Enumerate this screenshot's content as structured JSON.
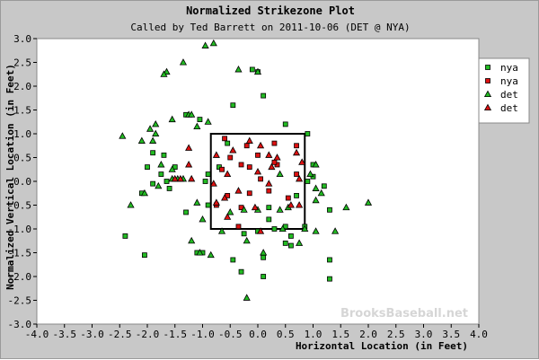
{
  "chart_data": {
    "type": "scatter",
    "title": "Normalized Strikezone Plot",
    "subtitle": "Called by Ted Barrett on 2011-10-06 (DET @ NYA)",
    "xlabel": "Horizontal Location (in Feet)",
    "ylabel": "Normalized Vertical Location (in Feet)",
    "xlim": [
      -4.0,
      4.0
    ],
    "ylim": [
      -3.0,
      3.0
    ],
    "x_ticks": [
      "-4.0",
      "-3.5",
      "-3.0",
      "-2.5",
      "-2.0",
      "-1.5",
      "-1.0",
      "-0.5",
      "0.0",
      "0.5",
      "1.0",
      "1.5",
      "2.0",
      "2.5",
      "3.0",
      "3.5",
      "4.0"
    ],
    "y_ticks": [
      "3.0",
      "2.5",
      "2.0",
      "1.5",
      "1.0",
      "0.5",
      "0.0",
      "-0.5",
      "-1.0",
      "-1.5",
      "-2.0",
      "-2.5",
      "-3.0"
    ],
    "strike_zone": {
      "x": [
        -0.85,
        0.85
      ],
      "y": [
        -1.0,
        1.0
      ]
    },
    "legend_position": "top-right",
    "watermark": "BrooksBaseball.net",
    "colors": {
      "ball": "#22bb22",
      "strike": "#dd1111",
      "plot_bg": "#ffffff",
      "outer_bg": "#c8c8c8"
    },
    "series": [
      {
        "name": "nya",
        "marker": "square",
        "color": "#22bb22",
        "points": [
          [
            0.5,
            1.2
          ],
          [
            0.9,
            1.0
          ],
          [
            -1.7,
            0.55
          ],
          [
            -1.6,
            -0.15
          ],
          [
            -2.1,
            -0.25
          ],
          [
            -1.5,
            0.3
          ],
          [
            -1.3,
            -0.65
          ],
          [
            -2.05,
            -1.55
          ],
          [
            -2.4,
            -1.15
          ],
          [
            -1.1,
            -1.5
          ],
          [
            -1.0,
            -1.5
          ],
          [
            -0.45,
            -1.65
          ],
          [
            -0.3,
            -1.9
          ],
          [
            0.1,
            -2.0
          ],
          [
            0.1,
            -1.6
          ],
          [
            0.6,
            -1.35
          ],
          [
            0.6,
            -1.15
          ],
          [
            0.5,
            -0.95
          ],
          [
            1.3,
            -1.65
          ],
          [
            1.3,
            -2.05
          ],
          [
            0.5,
            -1.3
          ],
          [
            0.2,
            -0.55
          ],
          [
            0.9,
            0.0
          ],
          [
            0.2,
            -0.8
          ],
          [
            -0.9,
            -0.5
          ],
          [
            -0.7,
            0.3
          ],
          [
            -1.3,
            1.4
          ],
          [
            -1.05,
            1.3
          ],
          [
            0.1,
            1.8
          ],
          [
            0.0,
            2.3
          ],
          [
            -0.1,
            2.35
          ],
          [
            -0.45,
            1.6
          ],
          [
            -0.55,
            0.8
          ],
          [
            -0.9,
            0.15
          ],
          [
            -0.95,
            0.0
          ],
          [
            -2.0,
            0.3
          ],
          [
            -1.9,
            -0.05
          ],
          [
            -1.75,
            0.15
          ],
          [
            -1.9,
            0.6
          ],
          [
            -1.65,
            0.0
          ],
          [
            1.0,
            0.1
          ],
          [
            1.0,
            0.35
          ],
          [
            1.2,
            -0.1
          ],
          [
            1.3,
            -0.6
          ],
          [
            0.85,
            -0.95
          ],
          [
            0.0,
            -1.05
          ],
          [
            0.3,
            -1.0
          ],
          [
            0.7,
            -0.3
          ],
          [
            -0.25,
            -1.1
          ]
        ]
      },
      {
        "name": "nya",
        "marker": "square",
        "color": "#dd1111",
        "points": [
          [
            -0.6,
            0.9
          ],
          [
            -0.5,
            0.5
          ],
          [
            -0.2,
            0.75
          ],
          [
            -0.15,
            0.3
          ],
          [
            0.0,
            0.55
          ],
          [
            0.3,
            0.8
          ],
          [
            0.7,
            0.75
          ],
          [
            0.35,
            0.35
          ],
          [
            0.7,
            0.15
          ],
          [
            0.05,
            0.05
          ],
          [
            -0.3,
            0.35
          ],
          [
            -0.65,
            0.25
          ],
          [
            -0.55,
            -0.3
          ],
          [
            -0.15,
            -0.25
          ],
          [
            0.2,
            -0.2
          ],
          [
            0.55,
            -0.35
          ],
          [
            -0.3,
            -0.55
          ],
          [
            -0.75,
            -0.5
          ],
          [
            -0.35,
            -0.95
          ],
          [
            0.3,
            0.4
          ]
        ]
      },
      {
        "name": "det",
        "marker": "triangle",
        "color": "#22bb22",
        "points": [
          [
            -0.95,
            2.85
          ],
          [
            -0.8,
            2.9
          ],
          [
            -1.35,
            2.5
          ],
          [
            -1.65,
            2.3
          ],
          [
            -1.7,
            2.25
          ],
          [
            -0.35,
            2.35
          ],
          [
            0.0,
            2.3
          ],
          [
            -1.25,
            1.4
          ],
          [
            -1.2,
            1.4
          ],
          [
            -0.9,
            1.25
          ],
          [
            -1.55,
            1.3
          ],
          [
            -1.85,
            1.2
          ],
          [
            -1.95,
            1.1
          ],
          [
            -1.85,
            1.0
          ],
          [
            -2.45,
            0.95
          ],
          [
            -1.9,
            0.85
          ],
          [
            -2.1,
            0.85
          ],
          [
            -1.75,
            0.35
          ],
          [
            -1.55,
            0.25
          ],
          [
            -2.05,
            -0.25
          ],
          [
            -2.3,
            -0.5
          ],
          [
            -1.8,
            -0.1
          ],
          [
            -1.1,
            -0.45
          ],
          [
            -1.0,
            -0.8
          ],
          [
            -1.2,
            -1.25
          ],
          [
            -1.05,
            -1.5
          ],
          [
            -0.85,
            -1.55
          ],
          [
            -0.65,
            -1.05
          ],
          [
            -0.2,
            -1.25
          ],
          [
            -0.2,
            -2.45
          ],
          [
            0.1,
            -1.5
          ],
          [
            0.4,
            -0.6
          ],
          [
            0.85,
            -1.0
          ],
          [
            0.45,
            -1.0
          ],
          [
            0.75,
            -1.3
          ],
          [
            1.05,
            -1.05
          ],
          [
            1.4,
            -1.05
          ],
          [
            1.6,
            -0.55
          ],
          [
            2.0,
            -0.45
          ],
          [
            1.05,
            -0.4
          ],
          [
            1.05,
            -0.15
          ],
          [
            1.15,
            -0.25
          ],
          [
            0.95,
            0.15
          ],
          [
            1.05,
            0.35
          ],
          [
            -1.1,
            1.15
          ],
          [
            -0.5,
            -0.65
          ],
          [
            0.55,
            -0.55
          ],
          [
            0.0,
            -0.6
          ],
          [
            -0.25,
            -0.6
          ],
          [
            0.4,
            0.15
          ],
          [
            -1.35,
            0.05
          ],
          [
            -1.45,
            0.05
          ],
          [
            -1.55,
            0.05
          ]
        ]
      },
      {
        "name": "det",
        "marker": "triangle",
        "color": "#dd1111",
        "points": [
          [
            -1.25,
            0.7
          ],
          [
            -1.25,
            0.35
          ],
          [
            -1.4,
            0.05
          ],
          [
            -1.5,
            0.05
          ],
          [
            -0.45,
            0.65
          ],
          [
            -0.15,
            0.85
          ],
          [
            0.05,
            0.75
          ],
          [
            0.2,
            0.55
          ],
          [
            0.7,
            0.6
          ],
          [
            0.8,
            0.4
          ],
          [
            -0.75,
            0.55
          ],
          [
            -0.55,
            0.15
          ],
          [
            -0.8,
            -0.05
          ],
          [
            -0.75,
            -0.45
          ],
          [
            -0.55,
            -0.75
          ],
          [
            -0.35,
            -0.2
          ],
          [
            0.0,
            0.2
          ],
          [
            0.35,
            0.5
          ],
          [
            0.25,
            0.3
          ],
          [
            0.75,
            -0.5
          ],
          [
            0.75,
            0.05
          ],
          [
            0.6,
            -0.5
          ],
          [
            -0.05,
            -0.55
          ],
          [
            0.2,
            -0.05
          ],
          [
            -1.2,
            0.05
          ],
          [
            -0.6,
            -0.35
          ],
          [
            0.05,
            -1.05
          ]
        ]
      }
    ]
  }
}
